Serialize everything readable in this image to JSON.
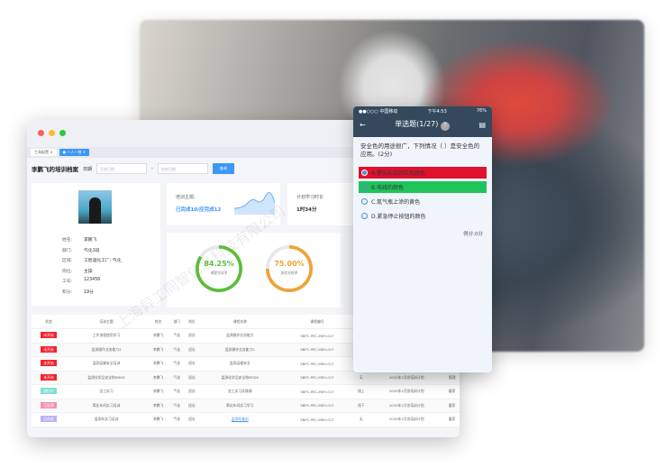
{
  "window": {
    "tabs": [
      {
        "label": "工具配置"
      },
      {
        "label": "一人一档"
      }
    ],
    "title": "李鹏飞的培训档案",
    "date_label": "日期",
    "start_placeholder": "开始日期",
    "end_placeholder": "结束日期",
    "query_label": "查询"
  },
  "profile": {
    "fields": [
      {
        "k": "姓名:",
        "v": "李鹏飞"
      },
      {
        "k": "部门:",
        "v": "气化1班"
      },
      {
        "k": "区域:",
        "v": "工智道化工厂: 气化"
      },
      {
        "k": "岗位:",
        "v": "主操"
      },
      {
        "k": "工号:",
        "v": "123456"
      },
      {
        "k": "积分:",
        "v": "19分"
      }
    ]
  },
  "stats": {
    "theme_label": "培训主题:",
    "theme_value": "已完成10/应完成12",
    "hours_label": "计划学习时长",
    "hours_value": "1时34分",
    "ring1": {
      "value": "84.25%",
      "label": "课题完成率",
      "percent": 84.25,
      "color": "#5cbd3a"
    },
    "ring2": {
      "value": "75.00%",
      "label": "测验合格率",
      "percent": 75,
      "color": "#f0a238"
    }
  },
  "table": {
    "headers": [
      "状态",
      "培训主题",
      "姓名",
      "部门",
      "岗位",
      "课程名称",
      "课程编号",
      "形式",
      "培训计划",
      "讲师"
    ],
    "rows": [
      {
        "status": "未开始",
        "color": "#f5222d",
        "c": [
          "工作流程使用学习",
          "李鹏飞",
          "气化",
          "班长",
          "监测操作业务能力",
          "SBPC-PEC-MEH-017",
          "",
          "",
          ""
        ]
      },
      {
        "status": "未开始",
        "color": "#f5222d",
        "c": [
          "监测操作业务能力2",
          "李鹏飞",
          "气化",
          "班长",
          "监测操作业务能力2",
          "SBPC-PEC-MEH-017",
          "",
          "",
          ""
        ]
      },
      {
        "status": "未开始",
        "color": "#f5222d",
        "c": [
          "监测运输安全培训",
          "李鹏飞",
          "气化",
          "班长",
          "监测运输安全",
          "SBPC-PEC-MEH-017",
          "",
          "",
          ""
        ]
      },
      {
        "status": "未开始",
        "color": "#f5222d",
        "c": [
          "监测化学品安全和MSDS",
          "李鹏飞",
          "气化",
          "班长",
          "监测化学品安全和MSDS",
          "SBPC-PEC-MEH-017",
          "无",
          "2020年1月份培训计划",
          "管理"
        ]
      },
      {
        "status": "进行中",
        "color": "#7fe0d0",
        "c": [
          "金工实习",
          "李鹏飞",
          "气化",
          "班长",
          "金工实习实操课",
          "SBPC-PEC-MEH-017",
          "线上",
          "2020年1月份培训计划",
          "霍家"
        ]
      },
      {
        "status": "已延期",
        "color": "#f78fb3",
        "c": [
          "氧化车间实习培训",
          "李鹏飞",
          "气化",
          "班长",
          "氧化车间实习学习",
          "SBPC-PEC-MEH-017",
          "线下",
          "2020年1月份培训计划",
          "霍家"
        ]
      },
      {
        "status": "已完成",
        "color": "#b9b2f5",
        "c": [
          "监测车实习培训",
          "李鹏飞",
          "气化",
          "班长",
          "监测车复训",
          "SBPC-PEC-MEH-017",
          "无",
          "2020年1月份培训计划",
          "霍家"
        ]
      }
    ]
  },
  "phone": {
    "carrier": "●●○○○ 中国移动",
    "time": "下午4:53",
    "battery": "76%",
    "title": "单选题(1/27)",
    "question": "安全色的用途很广，下列情况（ ）是安全色的应用。(2分)",
    "options": [
      {
        "label": "A.警告标志的红色颜色",
        "bg": "#e0102e"
      },
      {
        "label": "B.电线的颜色",
        "bg": "#1fc45a"
      },
      {
        "label": "C.氮气瓶上涂的黄色",
        "bg": ""
      },
      {
        "label": "D.紧急停止按钮的颜色",
        "bg": ""
      }
    ],
    "score": "得分:0分"
  },
  "watermark": {
    "cn": "上海异工同智信息科技有限公司",
    "en": "Shanghai Inroad Information Technology Co., Ltd."
  }
}
